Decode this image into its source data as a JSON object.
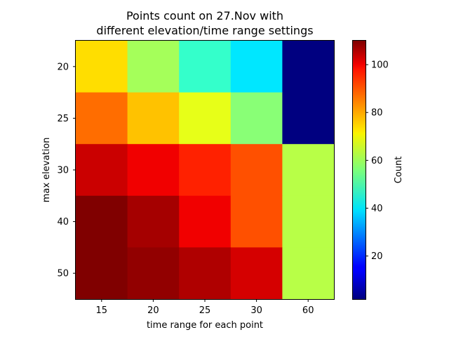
{
  "chart_data": {
    "type": "heatmap",
    "title_lines": [
      "Points count on 27.Nov with",
      "different elevation/time range settings"
    ],
    "xlabel": "time range for each point",
    "ylabel": "max elevation",
    "x_categories": [
      "15",
      "20",
      "25",
      "30",
      "60"
    ],
    "y_categories": [
      "20",
      "25",
      "30",
      "40",
      "50"
    ],
    "values": [
      [
        73,
        60,
        48,
        40,
        2
      ],
      [
        85,
        76,
        67,
        57,
        2
      ],
      [
        102,
        98,
        93,
        88,
        62
      ],
      [
        110,
        106,
        98,
        88,
        62
      ],
      [
        110,
        108,
        105,
        101,
        62
      ]
    ],
    "colorbar": {
      "label": "Count",
      "min": 2,
      "max": 110,
      "ticks": [
        20,
        40,
        60,
        80,
        100
      ],
      "colormap": "jet"
    }
  }
}
